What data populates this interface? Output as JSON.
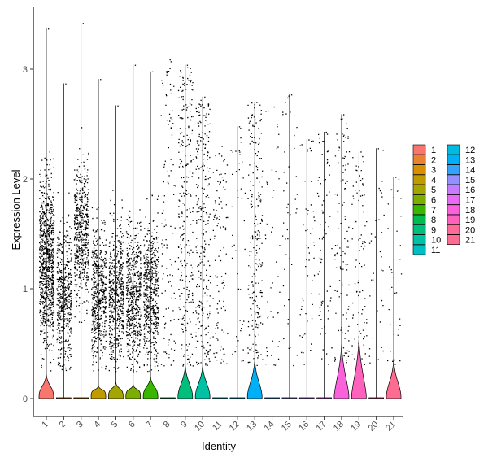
{
  "chart_data": {
    "type": "violin",
    "xlabel": "Identity",
    "ylabel": "Expression Level",
    "ylim": [
      -0.15,
      3.55
    ],
    "yticks": [
      0,
      1,
      2,
      3
    ],
    "legend_position": "right",
    "categories": [
      "1",
      "2",
      "3",
      "4",
      "5",
      "6",
      "7",
      "8",
      "9",
      "10",
      "11",
      "12",
      "13",
      "14",
      "15",
      "16",
      "17",
      "18",
      "19",
      "20",
      "21"
    ],
    "colors": [
      "#F8766D",
      "#EA8331",
      "#D89000",
      "#C09B00",
      "#A3A500",
      "#7CAE00",
      "#39B600",
      "#00BB4E",
      "#00BF7D",
      "#00C1A3",
      "#00BFC4",
      "#00BAE0",
      "#00B0F6",
      "#35A2FF",
      "#9590FF",
      "#C77CFF",
      "#E76BF3",
      "#FA62DB",
      "#FF62BC",
      "#FF6A98",
      "#FF6C91"
    ],
    "max_values": [
      3.37,
      2.87,
      3.42,
      2.91,
      2.67,
      3.04,
      2.98,
      3.09,
      3.04,
      2.75,
      2.3,
      2.48,
      2.7,
      2.66,
      2.77,
      2.36,
      2.43,
      2.59,
      2.25,
      2.28,
      2.02
    ],
    "cell_density": [
      1.0,
      0.55,
      0.6,
      0.6,
      0.6,
      0.6,
      0.6,
      0.12,
      0.3,
      0.3,
      0.12,
      0.05,
      0.25,
      0.05,
      0.05,
      0.06,
      0.08,
      0.12,
      0.1,
      0.04,
      0.04
    ],
    "violin_bulge_height": [
      0.22,
      0.0,
      0.0,
      0.12,
      0.15,
      0.13,
      0.2,
      0.0,
      0.3,
      0.3,
      0.0,
      0.0,
      0.35,
      0.0,
      0.0,
      0.0,
      0.0,
      0.5,
      0.55,
      0.0,
      0.35
    ]
  },
  "legend": {
    "col1": [
      "1",
      "2",
      "3",
      "4",
      "5",
      "6",
      "7",
      "8",
      "9",
      "10",
      "11"
    ],
    "col2": [
      "12",
      "13",
      "14",
      "15",
      "16",
      "17",
      "18",
      "19",
      "20",
      "21"
    ]
  }
}
